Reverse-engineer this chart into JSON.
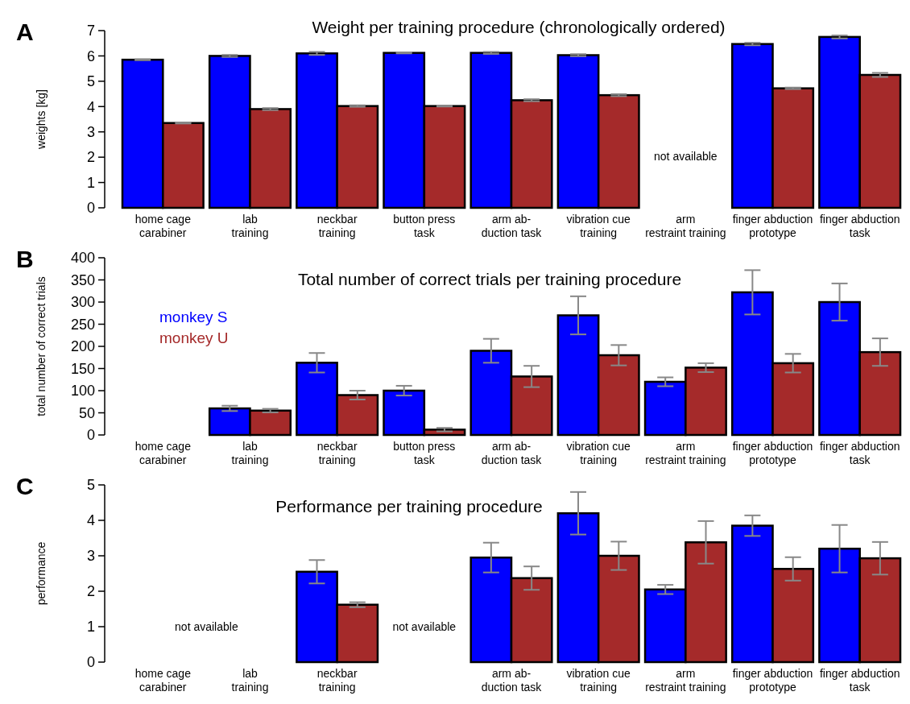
{
  "chart_data": [
    {
      "type": "bar",
      "title": "Weight per training procedure (chronologically ordered)",
      "ylabel": "weights [kg]",
      "categories": [
        "home cage\ncarabiner",
        "lab\ntraining",
        "neckbar\ntraining",
        "button press\ntask",
        "arm ab-\nduction task",
        "vibration cue\ntraining",
        "arm\nrestraint training",
        "finger abduction\nprototype",
        "finger abduction\ntask"
      ],
      "series": [
        {
          "color": "#0000ff",
          "values": [
            5.85,
            6.0,
            6.1,
            6.12,
            6.12,
            6.03,
            null,
            6.47,
            6.75
          ],
          "errors": [
            0.02,
            0.04,
            0.06,
            0.02,
            0.04,
            0.04,
            null,
            0.05,
            0.06
          ]
        },
        {
          "color": "#a52a2a",
          "values": [
            3.35,
            3.9,
            4.02,
            4.02,
            4.25,
            4.45,
            null,
            4.72,
            5.25
          ],
          "errors": [
            0.02,
            0.04,
            0.03,
            0.02,
            0.04,
            0.04,
            null,
            0.03,
            0.08
          ]
        }
      ],
      "ylim": [
        0,
        7
      ],
      "yticks": [
        0,
        1,
        2,
        3,
        4,
        5,
        6,
        7
      ],
      "grid": false,
      "legend": false,
      "annotations": [
        "A",
        "not available"
      ]
    },
    {
      "type": "bar",
      "title": "Total number of correct trials per training procedure",
      "ylabel": "total number of correct trials",
      "categories": [
        "home cage\ncarabiner",
        "lab\ntraining",
        "neckbar\ntraining",
        "button press\ntask",
        "arm ab-\nduction task",
        "vibration cue\ntraining",
        "arm\nrestraint training",
        "finger abduction\nprototype",
        "finger abduction\ntask"
      ],
      "series": [
        {
          "name": "monkey S",
          "color": "#0000ff",
          "values": [
            null,
            60,
            163,
            100,
            190,
            270,
            120,
            322,
            300
          ],
          "errors": [
            null,
            6,
            22,
            11,
            27,
            43,
            10,
            50,
            42
          ]
        },
        {
          "name": "monkey U",
          "color": "#a52a2a",
          "values": [
            null,
            55,
            90,
            12,
            132,
            180,
            152,
            162,
            187
          ],
          "errors": [
            null,
            4,
            10,
            4,
            24,
            23,
            10,
            21,
            31
          ]
        }
      ],
      "ylim": [
        0,
        400
      ],
      "yticks": [
        0,
        50,
        100,
        150,
        200,
        250,
        300,
        350,
        400
      ],
      "grid": false,
      "legend": "top left",
      "annotations": [
        "B"
      ]
    },
    {
      "type": "bar",
      "title": "Performance per training procedure",
      "ylabel": "performance",
      "categories": [
        "home cage\ncarabiner",
        "lab\ntraining",
        "neckbar\ntraining",
        null,
        "arm ab-\nduction task",
        "vibration cue\ntraining",
        "arm\nrestraint training",
        "finger abduction\nprototype",
        "finger abduction\ntask"
      ],
      "series": [
        {
          "color": "#0000ff",
          "values": [
            null,
            null,
            2.55,
            null,
            2.95,
            4.2,
            2.05,
            3.85,
            3.2
          ],
          "errors": [
            null,
            null,
            0.33,
            null,
            0.42,
            0.6,
            0.13,
            0.29,
            0.67
          ]
        },
        {
          "color": "#a52a2a",
          "values": [
            null,
            null,
            1.62,
            null,
            2.37,
            3.0,
            3.38,
            2.63,
            2.93
          ],
          "errors": [
            null,
            null,
            0.07,
            null,
            0.33,
            0.4,
            0.6,
            0.33,
            0.46
          ]
        }
      ],
      "ylim": [
        0,
        5
      ],
      "yticks": [
        0,
        1,
        2,
        3,
        4,
        5
      ],
      "grid": false,
      "legend": false,
      "annotations": [
        "C",
        "not available",
        "not available"
      ]
    }
  ]
}
